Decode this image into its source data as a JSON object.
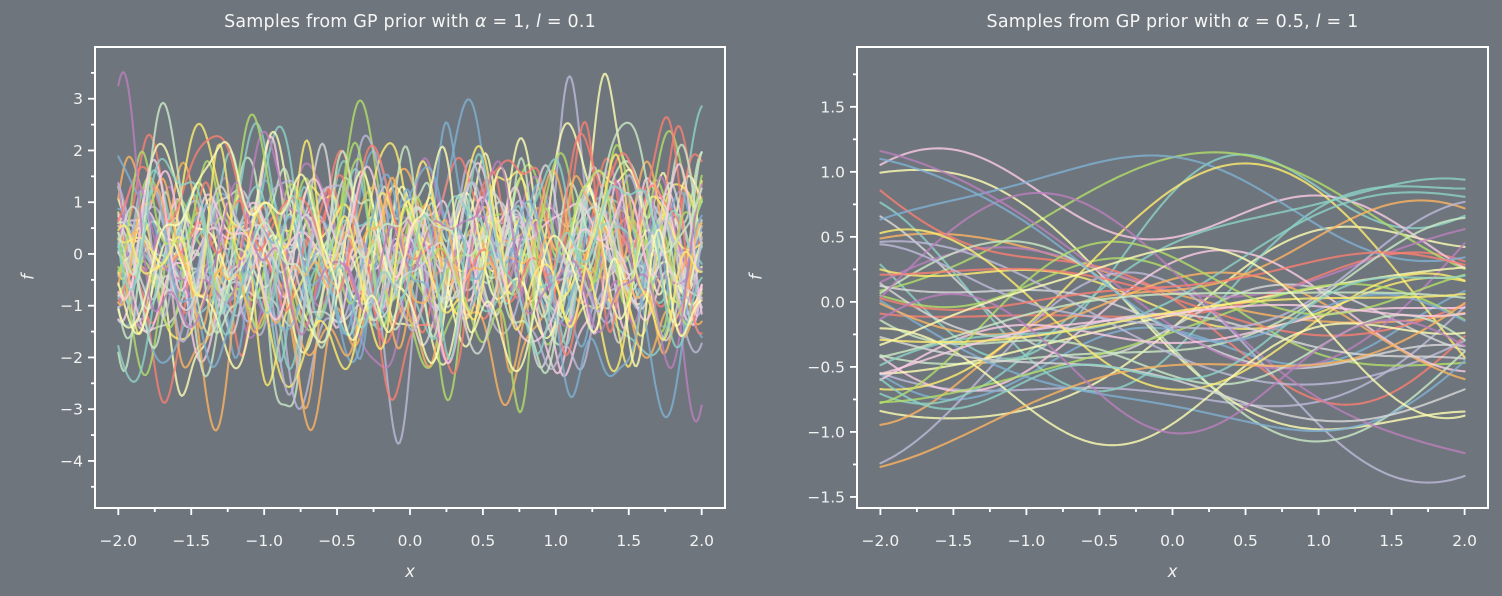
{
  "figure": {
    "background": "#6e757c",
    "text_color": "#f2f2f2",
    "title_color": "#f5f5f5",
    "spine_color": "#ffffff",
    "palette": [
      "#8dd3c7",
      "#ffffb3",
      "#bebada",
      "#fb8072",
      "#80b1d3",
      "#fdb462",
      "#b3de69",
      "#fccde5",
      "#d9d9d9",
      "#bc80bd",
      "#ccebc5",
      "#ffed6f"
    ],
    "line_opacity": 0.8,
    "line_width": 2.1
  },
  "chart_data": [
    {
      "type": "line",
      "title": "Samples from GP prior with α = 1, l = 0.1",
      "title_parts": [
        {
          "text": "Samples from GP prior with ",
          "italic": false
        },
        {
          "text": "α",
          "italic": true
        },
        {
          "text": " = 1, ",
          "italic": false
        },
        {
          "text": "l",
          "italic": true
        },
        {
          "text": " = 0.1",
          "italic": false
        }
      ],
      "xlabel": "x",
      "ylabel": "f",
      "x_range": [
        -2,
        2
      ],
      "xlim": [
        -2.16,
        2.16
      ],
      "ylim": [
        -4.91,
        4.0
      ],
      "xticks": [
        -2.0,
        -1.5,
        -1.0,
        -0.5,
        0.0,
        0.5,
        1.0,
        1.5,
        2.0
      ],
      "xtick_labels": [
        "−2.0",
        "−1.5",
        "−1.0",
        "−0.5",
        "0.0",
        "0.5",
        "1.0",
        "1.5",
        "2.0"
      ],
      "yticks": [
        3,
        2,
        1,
        0,
        -1,
        -2,
        -3,
        -4
      ],
      "ytick_labels": [
        "3",
        "2",
        "1",
        "0",
        "−1",
        "−2",
        "−3",
        "−4"
      ],
      "x_minor_step": 0.25,
      "y_minor_step": 0.5,
      "grid": false,
      "legend": null,
      "gp": {
        "kernel": "squared-exponential",
        "n_samples": 50,
        "alpha": 1,
        "lengthscale": 0.1,
        "seed": 101,
        "n_points": 340,
        "n_features": 40
      }
    },
    {
      "type": "line",
      "title": "Samples from GP prior with α = 0.5, l = 1",
      "title_parts": [
        {
          "text": "Samples from GP prior with ",
          "italic": false
        },
        {
          "text": "α",
          "italic": true
        },
        {
          "text": " = 0.5, ",
          "italic": false
        },
        {
          "text": "l",
          "italic": true
        },
        {
          "text": " = 1",
          "italic": false
        }
      ],
      "xlabel": "x",
      "ylabel": "f",
      "x_range": [
        -2,
        2
      ],
      "xlim": [
        -2.16,
        2.16
      ],
      "ylim": [
        -1.585,
        1.96
      ],
      "xticks": [
        -2.0,
        -1.5,
        -1.0,
        -0.5,
        0.0,
        0.5,
        1.0,
        1.5,
        2.0
      ],
      "xtick_labels": [
        "−2.0",
        "−1.5",
        "−1.0",
        "−0.5",
        "0.0",
        "0.5",
        "1.0",
        "1.5",
        "2.0"
      ],
      "yticks": [
        1.5,
        1.0,
        0.5,
        0.0,
        -0.5,
        -1.0,
        -1.5
      ],
      "ytick_labels": [
        "1.5",
        "1.0",
        "0.5",
        "0.0",
        "−0.5",
        "−1.0",
        "−1.5"
      ],
      "x_minor_step": 0.25,
      "y_minor_step": 0.25,
      "grid": false,
      "legend": null,
      "gp": {
        "kernel": "squared-exponential",
        "n_samples": 50,
        "alpha": 0.5,
        "lengthscale": 1,
        "seed": 202,
        "n_points": 160,
        "n_features": 24
      }
    }
  ]
}
